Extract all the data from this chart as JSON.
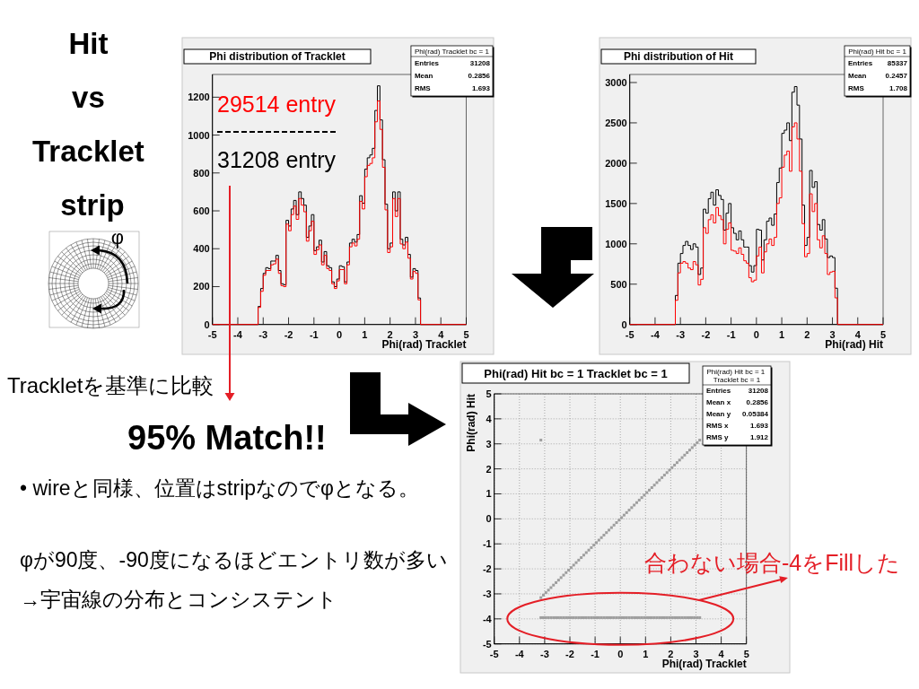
{
  "chart_data": [
    {
      "type": "other",
      "title": "Hit vs Tracklet strip",
      "annotations": [
        "φ",
        "Trackletを基準に比較",
        "95% Match!!",
        "• wireと同様、位置はstripなのでφとなる。",
        "φが90度、-90度になるほどエントリ数が多い",
        "→宇宙線の分布とコンシステント"
      ]
    },
    {
      "type": "histogram",
      "title": "Phi distribution of Tracklet",
      "xlabel": "Phi(rad) Tracklet",
      "bins": [
        -5,
        -3.2,
        -3.1,
        -3,
        -2.9,
        -2.8,
        -2.7,
        -2.6,
        -2.5,
        -2.4,
        -2.3,
        -2.2,
        -2.1,
        -2,
        -1.9,
        -1.8,
        -1.7,
        -1.6,
        -1.5,
        -1.4,
        -1.3,
        -1.2,
        -1.1,
        -1,
        -0.9,
        -0.8,
        -0.7,
        -0.6,
        -0.5,
        -0.4,
        -0.3,
        -0.2,
        -0.1,
        0,
        0.1,
        0.2,
        0.3,
        0.4,
        0.5,
        0.6,
        0.7,
        0.8,
        0.9,
        1,
        1.1,
        1.2,
        1.3,
        1.4,
        1.5,
        1.6,
        1.7,
        1.8,
        1.9,
        2,
        2.1,
        2.2,
        2.3,
        2.4,
        2.5,
        2.6,
        2.7,
        2.8,
        2.9,
        3,
        3.1,
        3.2,
        5
      ],
      "series": [
        {
          "name": "31208 entry",
          "color": "#000000",
          "values": [
            0,
            95,
            190,
            270,
            300,
            295,
            335,
            335,
            365,
            285,
            215,
            210,
            550,
            520,
            610,
            655,
            580,
            700,
            665,
            630,
            460,
            520,
            580,
            390,
            410,
            445,
            330,
            385,
            310,
            300,
            225,
            200,
            240,
            310,
            305,
            225,
            330,
            430,
            450,
            435,
            475,
            680,
            640,
            820,
            880,
            895,
            930,
            1130,
            1260,
            1080,
            870,
            635,
            400,
            430,
            700,
            600,
            700,
            450,
            420,
            460,
            370,
            250,
            295,
            285,
            140,
            0
          ]
        },
        {
          "name": "29514 entry",
          "color": "#ff0000",
          "values": [
            0,
            90,
            175,
            260,
            285,
            285,
            315,
            320,
            345,
            270,
            205,
            200,
            530,
            495,
            580,
            625,
            555,
            665,
            630,
            595,
            440,
            495,
            545,
            370,
            395,
            420,
            315,
            365,
            295,
            285,
            215,
            190,
            230,
            290,
            290,
            215,
            315,
            410,
            430,
            415,
            450,
            650,
            610,
            780,
            840,
            850,
            880,
            1070,
            1180,
            1030,
            830,
            605,
            380,
            410,
            665,
            570,
            665,
            425,
            400,
            435,
            350,
            240,
            280,
            270,
            130,
            0
          ]
        }
      ],
      "xlim": [
        -5,
        5
      ],
      "xticks": [
        -5,
        -4,
        -3,
        -2,
        -1,
        0,
        1,
        2,
        3,
        4,
        5
      ],
      "ylim": [
        0,
        1320
      ],
      "yticks": [
        0,
        200,
        400,
        600,
        800,
        1000,
        1200
      ],
      "legend": "top left",
      "annotations": [
        "Phi(rad) Tracklet bc = 1",
        "Entries 31208",
        "Mean 0.2856",
        "RMS 1.693"
      ]
    },
    {
      "type": "histogram",
      "title": "Phi distribution of Hit",
      "xlabel": "Phi(rad) Hit",
      "bins": [
        -5,
        -3.2,
        -3.1,
        -3,
        -2.9,
        -2.8,
        -2.7,
        -2.6,
        -2.5,
        -2.4,
        -2.3,
        -2.2,
        -2.1,
        -2,
        -1.9,
        -1.8,
        -1.7,
        -1.6,
        -1.5,
        -1.4,
        -1.3,
        -1.2,
        -1.1,
        -1,
        -0.9,
        -0.8,
        -0.7,
        -0.6,
        -0.5,
        -0.4,
        -0.3,
        -0.2,
        -0.1,
        0,
        0.1,
        0.2,
        0.3,
        0.4,
        0.5,
        0.6,
        0.7,
        0.8,
        0.9,
        1,
        1.1,
        1.2,
        1.3,
        1.4,
        1.5,
        1.6,
        1.7,
        1.8,
        1.9,
        2,
        2.1,
        2.2,
        2.3,
        2.4,
        2.5,
        2.6,
        2.7,
        2.8,
        2.9,
        3,
        3.1,
        3.2,
        5
      ],
      "series": [
        {
          "color": "#000000",
          "values": [
            0,
            360,
            760,
            880,
            980,
            1030,
            980,
            930,
            1000,
            960,
            620,
            700,
            1430,
            1380,
            1560,
            1640,
            1480,
            1670,
            1600,
            1550,
            1170,
            1380,
            1500,
            1200,
            1130,
            1050,
            1160,
            1050,
            960,
            960,
            730,
            650,
            730,
            1180,
            1170,
            800,
            1050,
            1280,
            1320,
            1230,
            1370,
            1760,
            1940,
            2370,
            2410,
            2500,
            2280,
            2880,
            2950,
            2720,
            2300,
            1480,
            980,
            1080,
            1910,
            1700,
            1770,
            1240,
            1170,
            1300,
            1060,
            830,
            850,
            830,
            450,
            0
          ]
        },
        {
          "color": "#ff0000",
          "values": [
            0,
            300,
            640,
            760,
            780,
            760,
            700,
            680,
            780,
            740,
            490,
            560,
            1200,
            1130,
            1300,
            1360,
            1260,
            1450,
            1350,
            1300,
            1000,
            1180,
            1260,
            920,
            910,
            880,
            950,
            870,
            790,
            760,
            580,
            530,
            550,
            850,
            960,
            640,
            900,
            1000,
            1060,
            980,
            1080,
            1500,
            1570,
            1950,
            2100,
            2150,
            1900,
            2450,
            2500,
            2300,
            1900,
            1250,
            840,
            880,
            1620,
            1400,
            1500,
            1050,
            950,
            1100,
            880,
            620,
            650,
            660,
            330,
            0
          ]
        }
      ],
      "xlim": [
        -5,
        5
      ],
      "xticks": [
        -5,
        -4,
        -3,
        -2,
        -1,
        0,
        1,
        2,
        3,
        4,
        5
      ],
      "ylim": [
        0,
        3100
      ],
      "yticks": [
        0,
        500,
        1000,
        1500,
        2000,
        2500,
        3000
      ],
      "annotations": [
        "Phi(rad) Hit bc = 1",
        "Entries 85337",
        "Mean 0.2457",
        "RMS 1.708"
      ]
    },
    {
      "type": "scatter",
      "title": "Phi(rad) Hit bc = 1 Tracklet bc = 1",
      "xlabel": "Phi(rad) Tracklet",
      "ylabel": "Phi(rad) Hit",
      "x": [
        -3.15,
        -3.05,
        -2.95,
        -2.85,
        -2.75,
        -2.65,
        -2.55,
        -2.45,
        -2.35,
        -2.25,
        -2.15,
        -2.05,
        -1.95,
        -1.85,
        -1.75,
        -1.65,
        -1.55,
        -1.45,
        -1.35,
        -1.25,
        -1.15,
        -1.05,
        -0.95,
        -0.85,
        -0.75,
        -0.65,
        -0.55,
        -0.45,
        -0.35,
        -0.25,
        -0.15,
        -0.05,
        0.05,
        0.15,
        0.25,
        0.35,
        0.45,
        0.55,
        0.65,
        0.75,
        0.85,
        0.95,
        1.05,
        1.15,
        1.25,
        1.35,
        1.45,
        1.55,
        1.65,
        1.75,
        1.85,
        1.95,
        2.05,
        2.15,
        2.25,
        2.35,
        2.45,
        2.55,
        2.65,
        2.75,
        2.85,
        2.95,
        3.05,
        3.15,
        -3.15,
        -3.05,
        -2.95,
        -2.85,
        -2.75,
        -2.65,
        -2.55,
        -2.45,
        -2.35,
        -2.25,
        -2.15,
        -2.05,
        -1.95,
        -1.85,
        -1.75,
        -1.65,
        -1.55,
        -1.45,
        -1.35,
        -1.25,
        -1.15,
        -1.05,
        -0.95,
        -0.85,
        -0.75,
        -0.65,
        -0.55,
        -0.45,
        -0.35,
        -0.25,
        -0.15,
        -0.05,
        0.05,
        0.15,
        0.25,
        0.35,
        0.45,
        0.55,
        0.65,
        0.75,
        0.85,
        0.95,
        1.05,
        1.15,
        1.25,
        1.35,
        1.45,
        1.55,
        1.65,
        1.75,
        1.85,
        1.95,
        2.05,
        2.15,
        2.25,
        2.35,
        2.45,
        2.55,
        2.65,
        2.75,
        2.85,
        2.95,
        3.05,
        3.15,
        -3.15
      ],
      "values": [
        -3.15,
        -3.05,
        -2.95,
        -2.85,
        -2.75,
        -2.65,
        -2.55,
        -2.45,
        -2.35,
        -2.25,
        -2.15,
        -2.05,
        -1.95,
        -1.85,
        -1.75,
        -1.65,
        -1.55,
        -1.45,
        -1.35,
        -1.25,
        -1.15,
        -1.05,
        -0.95,
        -0.85,
        -0.75,
        -0.65,
        -0.55,
        -0.45,
        -0.35,
        -0.25,
        -0.15,
        -0.05,
        0.05,
        0.15,
        0.25,
        0.35,
        0.45,
        0.55,
        0.65,
        0.75,
        0.85,
        0.95,
        1.05,
        1.15,
        1.25,
        1.35,
        1.45,
        1.55,
        1.65,
        1.75,
        1.85,
        1.95,
        2.05,
        2.15,
        2.25,
        2.35,
        2.45,
        2.55,
        2.65,
        2.75,
        2.85,
        2.95,
        3.05,
        3.15,
        -3.95,
        -3.95,
        -3.95,
        -3.95,
        -3.95,
        -3.95,
        -3.95,
        -3.95,
        -3.95,
        -3.95,
        -3.95,
        -3.95,
        -3.95,
        -3.95,
        -3.95,
        -3.95,
        -3.95,
        -3.95,
        -3.95,
        -3.95,
        -3.95,
        -3.95,
        -3.95,
        -3.95,
        -3.95,
        -3.95,
        -3.95,
        -3.95,
        -3.95,
        -3.95,
        -3.95,
        -3.95,
        -3.95,
        -3.95,
        -3.95,
        -3.95,
        -3.95,
        -3.95,
        -3.95,
        -3.95,
        -3.95,
        -3.95,
        -3.95,
        -3.95,
        -3.95,
        -3.95,
        -3.95,
        -3.95,
        -3.95,
        -3.95,
        -3.95,
        -3.95,
        -3.95,
        -3.95,
        -3.95,
        -3.95,
        -3.95,
        -3.95,
        -3.95,
        -3.95,
        -3.95,
        -3.95,
        -3.95,
        -3.95,
        3.15
      ],
      "color": "#9e9e9e",
      "marker": "square",
      "xlim": [
        -5,
        5
      ],
      "xticks": [
        -5,
        -4,
        -3,
        -2,
        -1,
        0,
        1,
        2,
        3,
        4,
        5
      ],
      "ylim": [
        -5,
        5
      ],
      "yticks": [
        -5,
        -4,
        -3,
        -2,
        -1,
        0,
        1,
        2,
        3,
        4,
        5
      ],
      "grid": true,
      "annotations": [
        "Phi(rad) Hit bc = 1 Tracklet bc = 1",
        "Entries 31208",
        "Mean x 0.2856",
        "Mean y 0.05384",
        "RMS x 1.693",
        "RMS y 1.912",
        {
          "text": "合わない場合-4をFillした",
          "x": 0,
          "y": -4
        }
      ]
    }
  ]
}
